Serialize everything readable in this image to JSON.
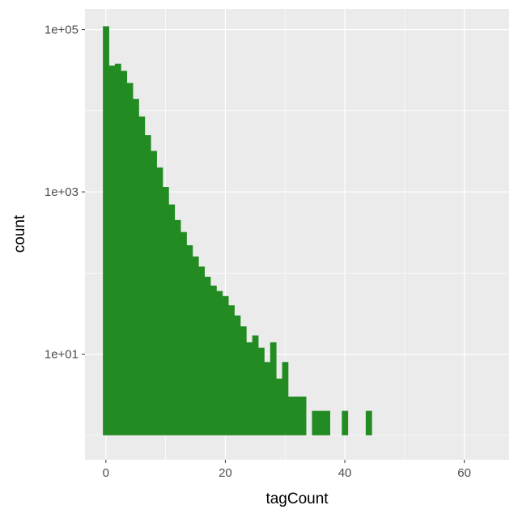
{
  "chart_data": {
    "type": "bar",
    "subtype": "histogram",
    "xlabel": "tagCount",
    "ylabel": "count",
    "y_scale": "log10",
    "xlim": [
      -3.5,
      67.5
    ],
    "ylim": [
      0.5,
      180000
    ],
    "bin_width": 1,
    "bar_color": "#228b22",
    "panel_background": "#ebebeb",
    "grid": true,
    "x_ticks": [
      {
        "value": 0,
        "label": "0"
      },
      {
        "value": 20,
        "label": "20"
      },
      {
        "value": 40,
        "label": "40"
      },
      {
        "value": 60,
        "label": "60"
      }
    ],
    "y_ticks": [
      {
        "value": 10,
        "label": "1e+01"
      },
      {
        "value": 1000,
        "label": "1e+03"
      },
      {
        "value": 100000,
        "label": "1e+05"
      }
    ],
    "x": [
      0,
      1,
      2,
      3,
      4,
      5,
      6,
      7,
      8,
      9,
      10,
      11,
      12,
      13,
      14,
      15,
      16,
      17,
      18,
      19,
      20,
      21,
      22,
      23,
      24,
      25,
      26,
      27,
      28,
      29,
      30,
      31,
      32,
      33,
      35,
      36,
      37,
      38,
      40,
      41,
      43,
      44,
      46,
      49
    ],
    "values": [
      110000,
      36000,
      38000,
      31000,
      22000,
      14000,
      8500,
      5000,
      3200,
      2000,
      1150,
      700,
      450,
      320,
      220,
      160,
      120,
      90,
      70,
      60,
      52,
      40,
      30,
      22,
      14,
      17,
      12,
      8,
      14,
      5,
      8,
      3,
      3,
      3,
      2,
      2,
      2,
      1,
      2,
      1,
      1,
      2,
      1,
      1
    ]
  }
}
